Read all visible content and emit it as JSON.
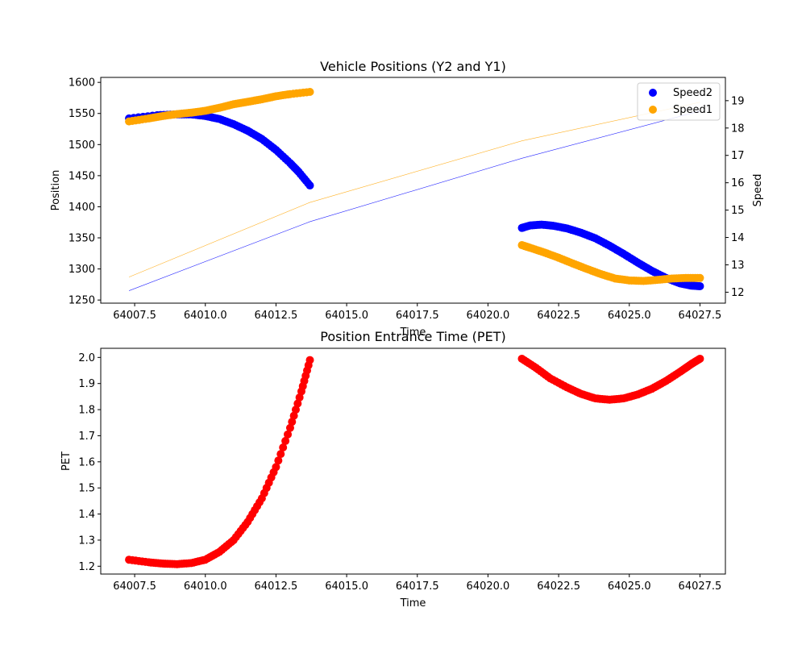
{
  "chart_data": [
    {
      "type": "scatter",
      "title": "Vehicle Positions (Y2 and Y1)",
      "xlabel": "Time",
      "ylabel": "Position",
      "y2label": "Speed",
      "xlim": [
        64006.3,
        64028.4
      ],
      "ylim": [
        1245,
        1608
      ],
      "y2lim": [
        11.6,
        19.85
      ],
      "x_ticks": [
        "64007.5",
        "64010.0",
        "64012.5",
        "64015.0",
        "64017.5",
        "64020.0",
        "64022.5",
        "64025.0",
        "64027.5"
      ],
      "y_ticks": [
        "1250",
        "1300",
        "1350",
        "1400",
        "1450",
        "1500",
        "1550",
        "1600"
      ],
      "y2_ticks": [
        "12",
        "13",
        "14",
        "15",
        "16",
        "17",
        "18",
        "19"
      ],
      "grid": false,
      "legend_position": "upper right",
      "series": [
        {
          "name": "Speed2",
          "kind": "scatter",
          "axis": "right",
          "color": "#0000ff",
          "segments": [
            [
              [
                64007.3,
                18.35
              ],
              [
                64008.3,
                18.47
              ],
              [
                64009.0,
                18.5
              ],
              [
                64009.5,
                18.5
              ],
              [
                64010.0,
                18.44
              ],
              [
                64010.5,
                18.33
              ],
              [
                64011.0,
                18.14
              ],
              [
                64011.5,
                17.9
              ],
              [
                64012.0,
                17.6
              ],
              [
                64012.5,
                17.2
              ],
              [
                64013.0,
                16.72
              ],
              [
                64013.3,
                16.4
              ],
              [
                64013.7,
                15.9
              ]
            ],
            [
              [
                64021.2,
                14.35
              ],
              [
                64021.5,
                14.44
              ],
              [
                64021.9,
                14.47
              ],
              [
                64022.3,
                14.43
              ],
              [
                64022.8,
                14.33
              ],
              [
                64023.3,
                14.17
              ],
              [
                64023.8,
                13.97
              ],
              [
                64024.3,
                13.7
              ],
              [
                64024.8,
                13.4
              ],
              [
                64025.3,
                13.08
              ],
              [
                64025.8,
                12.78
              ],
              [
                64026.3,
                12.52
              ],
              [
                64026.8,
                12.32
              ],
              [
                64027.2,
                12.24
              ],
              [
                64027.5,
                12.22
              ]
            ]
          ]
        },
        {
          "name": "Speed1",
          "kind": "scatter",
          "axis": "right",
          "color": "#ffa500",
          "segments": [
            [
              [
                64007.3,
                18.24
              ],
              [
                64008.0,
                18.35
              ],
              [
                64008.5,
                18.44
              ],
              [
                64009.0,
                18.51
              ],
              [
                64009.5,
                18.56
              ],
              [
                64010.0,
                18.63
              ],
              [
                64010.5,
                18.74
              ],
              [
                64011.0,
                18.87
              ],
              [
                64011.5,
                18.96
              ],
              [
                64012.0,
                19.05
              ],
              [
                64012.5,
                19.16
              ],
              [
                64013.0,
                19.24
              ],
              [
                64013.7,
                19.32
              ]
            ],
            [
              [
                64021.2,
                13.72
              ],
              [
                64021.5,
                13.62
              ],
              [
                64022.0,
                13.45
              ],
              [
                64022.5,
                13.26
              ],
              [
                64023.0,
                13.05
              ],
              [
                64023.5,
                12.85
              ],
              [
                64024.0,
                12.66
              ],
              [
                64024.5,
                12.5
              ],
              [
                64025.0,
                12.43
              ],
              [
                64025.5,
                12.41
              ],
              [
                64026.0,
                12.45
              ],
              [
                64026.5,
                12.5
              ],
              [
                64027.0,
                12.52
              ],
              [
                64027.5,
                12.52
              ]
            ]
          ]
        },
        {
          "kind": "line",
          "axis": "left",
          "color": "#0000ff",
          "points": [
            [
              64007.3,
              1265
            ],
            [
              64013.7,
              1376
            ],
            [
              64021.2,
              1478
            ],
            [
              64027.5,
              1554
            ]
          ]
        },
        {
          "kind": "line",
          "axis": "left",
          "color": "#ffa500",
          "points": [
            [
              64007.3,
              1287
            ],
            [
              64013.7,
              1407
            ],
            [
              64021.2,
              1506
            ],
            [
              64027.5,
              1568
            ]
          ]
        }
      ]
    },
    {
      "type": "scatter",
      "title": "Position Entrance Time (PET)",
      "xlabel": "Time",
      "ylabel": "PET",
      "xlim": [
        64006.3,
        64028.4
      ],
      "ylim": [
        1.17,
        2.035
      ],
      "x_ticks": [
        "64007.5",
        "64010.0",
        "64012.5",
        "64015.0",
        "64017.5",
        "64020.0",
        "64022.5",
        "64025.0",
        "64027.5"
      ],
      "y_ticks": [
        "1.2",
        "1.3",
        "1.4",
        "1.5",
        "1.6",
        "1.7",
        "1.8",
        "1.9",
        "2.0"
      ],
      "grid": false,
      "series": [
        {
          "kind": "scatter",
          "axis": "left",
          "color": "#ff0000",
          "segments": [
            [
              [
                64007.3,
                1.225
              ],
              [
                64008.0,
                1.215
              ],
              [
                64008.5,
                1.21
              ],
              [
                64009.0,
                1.208
              ],
              [
                64009.5,
                1.212
              ],
              [
                64010.0,
                1.225
              ],
              [
                64010.5,
                1.255
              ],
              [
                64011.0,
                1.3
              ],
              [
                64011.5,
                1.37
              ],
              [
                64012.0,
                1.46
              ],
              [
                64012.5,
                1.58
              ],
              [
                64013.0,
                1.73
              ],
              [
                64013.4,
                1.87
              ],
              [
                64013.7,
                1.99
              ]
            ],
            [
              [
                64021.2,
                1.995
              ],
              [
                64021.7,
                1.96
              ],
              [
                64022.2,
                1.92
              ],
              [
                64022.8,
                1.885
              ],
              [
                64023.3,
                1.86
              ],
              [
                64023.8,
                1.843
              ],
              [
                64024.3,
                1.838
              ],
              [
                64024.8,
                1.843
              ],
              [
                64025.3,
                1.858
              ],
              [
                64025.8,
                1.88
              ],
              [
                64026.3,
                1.91
              ],
              [
                64026.8,
                1.945
              ],
              [
                64027.2,
                1.975
              ],
              [
                64027.5,
                1.995
              ]
            ]
          ]
        }
      ]
    }
  ]
}
